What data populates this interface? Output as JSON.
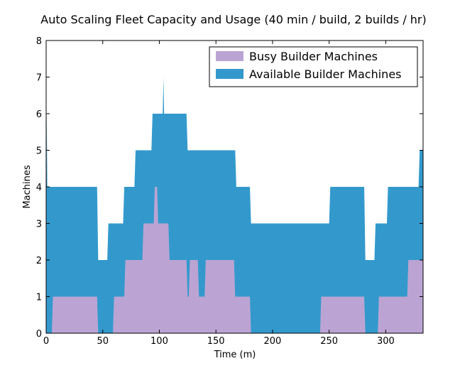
{
  "chart_data": {
    "type": "area",
    "title": "Auto Scaling Fleet Capacity and Usage (40 min / build, 2 builds / hr)",
    "xlabel": "Time (m)",
    "ylabel": "Machines",
    "xlim": [
      0,
      333
    ],
    "ylim": [
      0,
      8
    ],
    "x_ticks": [
      0,
      50,
      100,
      150,
      200,
      250,
      300
    ],
    "y_ticks": [
      0,
      1,
      2,
      3,
      4,
      5,
      6,
      7,
      8
    ],
    "grid": false,
    "legend_position": "top-right",
    "series": [
      {
        "name": "Available Builder Machines",
        "color": "#3399cc",
        "x": [
          0,
          0.5,
          1,
          3,
          45,
          46,
          54,
          55,
          68,
          69,
          78,
          79,
          93,
          94,
          103,
          103.7,
          104.2,
          105,
          124,
          125,
          167,
          168,
          180,
          181,
          250,
          251,
          281,
          282,
          290,
          291,
          301,
          302,
          329,
          330,
          333
        ],
        "y": [
          1,
          6,
          4,
          4,
          4,
          2,
          2,
          3,
          3,
          4,
          4,
          5,
          5,
          6,
          6,
          7,
          6,
          6,
          6,
          5,
          5,
          4,
          4,
          3,
          3,
          4,
          4,
          2,
          2,
          3,
          3,
          4,
          4,
          5,
          5
        ]
      },
      {
        "name": "Busy Builder Machines",
        "color": "#bba4d3",
        "x": [
          0,
          5,
          6,
          45,
          46,
          59,
          60,
          69,
          70,
          85,
          86,
          95,
          96,
          98,
          99,
          108,
          109,
          124,
          125,
          126,
          127,
          134,
          135,
          140,
          141,
          166,
          167,
          180,
          181,
          242,
          243,
          281,
          282,
          293,
          294,
          319,
          320,
          333
        ],
        "y": [
          0,
          0,
          1,
          1,
          0,
          0,
          1,
          1,
          2,
          2,
          3,
          3,
          4,
          4,
          3,
          3,
          2,
          2,
          1,
          1,
          2,
          2,
          1,
          1,
          2,
          2,
          1,
          1,
          0,
          0,
          1,
          1,
          0,
          0,
          1,
          1,
          2,
          2
        ]
      }
    ]
  }
}
